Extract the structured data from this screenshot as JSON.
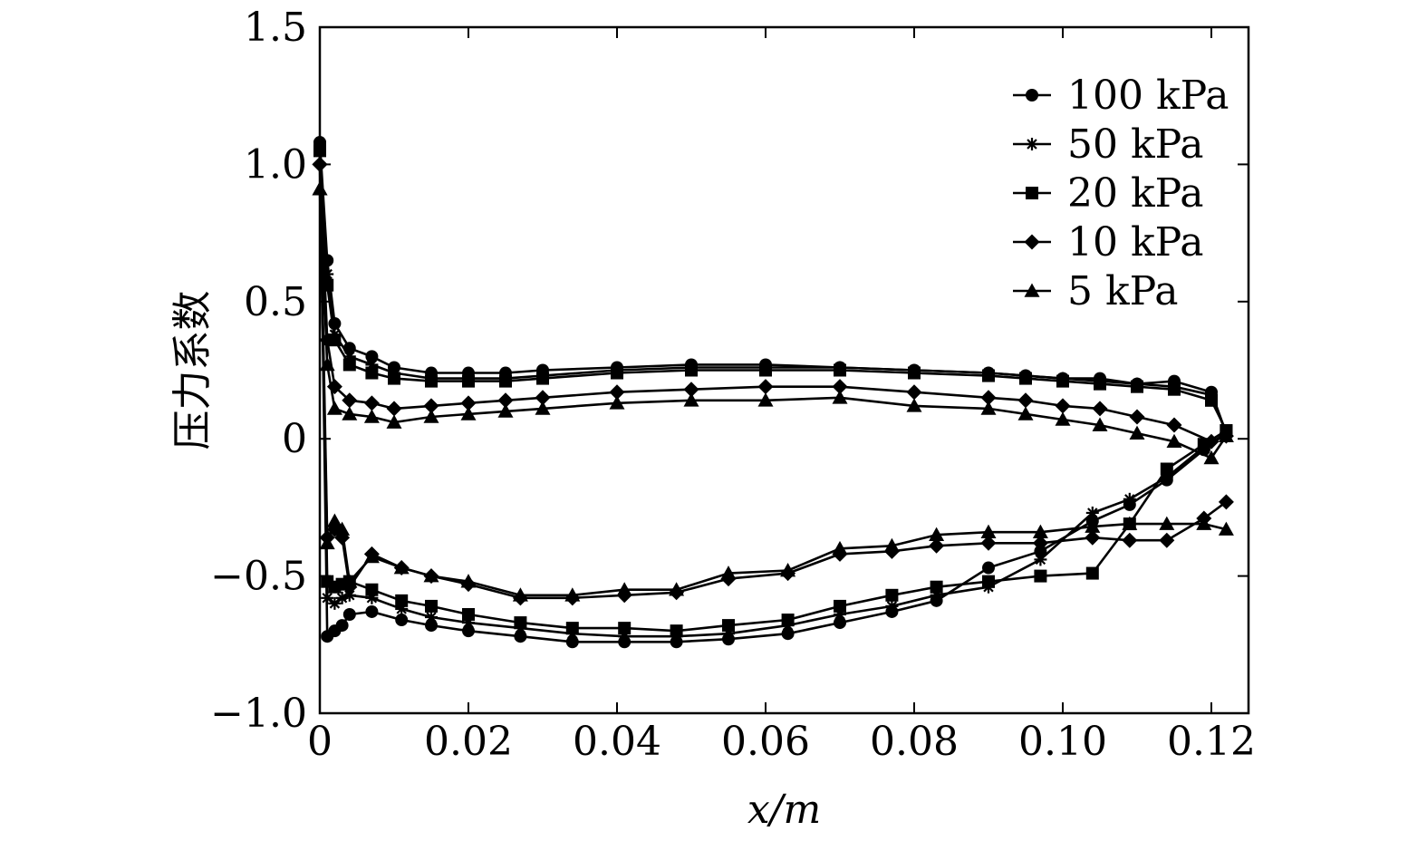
{
  "chart_data": {
    "type": "line",
    "xlabel": "x/m",
    "ylabel": "压力系数",
    "xlim": [
      0,
      0.125
    ],
    "ylim": [
      -1.0,
      1.5
    ],
    "x_ticks": [
      {
        "value": 0,
        "label": "0"
      },
      {
        "value": 0.02,
        "label": "0.02"
      },
      {
        "value": 0.04,
        "label": "0.04"
      },
      {
        "value": 0.06,
        "label": "0.06"
      },
      {
        "value": 0.08,
        "label": "0.08"
      },
      {
        "value": 0.1,
        "label": "0.10"
      },
      {
        "value": 0.12,
        "label": "0.12"
      }
    ],
    "y_ticks": [
      {
        "value": 1.5,
        "label": "1.5"
      },
      {
        "value": 1.0,
        "label": "1.0"
      },
      {
        "value": 0.5,
        "label": "0.5"
      },
      {
        "value": 0,
        "label": "0"
      },
      {
        "value": -0.5,
        "label": "−0.5"
      },
      {
        "value": -1.0,
        "label": "−1.0"
      }
    ],
    "grid": false,
    "legend_position": "top-right",
    "series": [
      {
        "name": "100 kPa",
        "marker": "circle",
        "upper": [
          [
            0,
            1.08
          ],
          [
            0.001,
            0.65
          ],
          [
            0.002,
            0.42
          ],
          [
            0.004,
            0.33
          ],
          [
            0.007,
            0.3
          ],
          [
            0.01,
            0.26
          ],
          [
            0.015,
            0.24
          ],
          [
            0.02,
            0.24
          ],
          [
            0.025,
            0.24
          ],
          [
            0.03,
            0.25
          ],
          [
            0.04,
            0.26
          ],
          [
            0.05,
            0.27
          ],
          [
            0.06,
            0.27
          ],
          [
            0.07,
            0.26
          ],
          [
            0.08,
            0.25
          ],
          [
            0.09,
            0.24
          ],
          [
            0.095,
            0.23
          ],
          [
            0.1,
            0.22
          ],
          [
            0.105,
            0.22
          ],
          [
            0.11,
            0.2
          ],
          [
            0.115,
            0.21
          ],
          [
            0.12,
            0.17
          ],
          [
            0.122,
            0.02
          ]
        ],
        "lower": [
          [
            0,
            1.08
          ],
          [
            0.001,
            -0.72
          ],
          [
            0.002,
            -0.7
          ],
          [
            0.003,
            -0.68
          ],
          [
            0.004,
            -0.64
          ],
          [
            0.007,
            -0.63
          ],
          [
            0.011,
            -0.66
          ],
          [
            0.015,
            -0.68
          ],
          [
            0.02,
            -0.7
          ],
          [
            0.027,
            -0.72
          ],
          [
            0.034,
            -0.74
          ],
          [
            0.041,
            -0.74
          ],
          [
            0.048,
            -0.74
          ],
          [
            0.055,
            -0.73
          ],
          [
            0.063,
            -0.71
          ],
          [
            0.07,
            -0.67
          ],
          [
            0.077,
            -0.63
          ],
          [
            0.083,
            -0.59
          ],
          [
            0.09,
            -0.47
          ],
          [
            0.097,
            -0.41
          ],
          [
            0.104,
            -0.3
          ],
          [
            0.109,
            -0.24
          ],
          [
            0.114,
            -0.15
          ],
          [
            0.119,
            -0.04
          ],
          [
            0.122,
            0.02
          ]
        ]
      },
      {
        "name": "50 kPa",
        "marker": "star",
        "upper": [
          [
            0,
            1.06
          ],
          [
            0.001,
            0.6
          ],
          [
            0.002,
            0.38
          ],
          [
            0.004,
            0.3
          ],
          [
            0.007,
            0.27
          ],
          [
            0.01,
            0.24
          ],
          [
            0.015,
            0.22
          ],
          [
            0.02,
            0.22
          ],
          [
            0.025,
            0.22
          ],
          [
            0.03,
            0.23
          ],
          [
            0.04,
            0.25
          ],
          [
            0.05,
            0.26
          ],
          [
            0.06,
            0.26
          ],
          [
            0.07,
            0.26
          ],
          [
            0.08,
            0.25
          ],
          [
            0.09,
            0.24
          ],
          [
            0.095,
            0.23
          ],
          [
            0.1,
            0.22
          ],
          [
            0.105,
            0.21
          ],
          [
            0.11,
            0.2
          ],
          [
            0.115,
            0.19
          ],
          [
            0.12,
            0.16
          ],
          [
            0.122,
            0.02
          ]
        ],
        "lower": [
          [
            0,
            1.06
          ],
          [
            0.001,
            -0.58
          ],
          [
            0.002,
            -0.6
          ],
          [
            0.003,
            -0.58
          ],
          [
            0.004,
            -0.57
          ],
          [
            0.007,
            -0.58
          ],
          [
            0.011,
            -0.62
          ],
          [
            0.015,
            -0.65
          ],
          [
            0.02,
            -0.67
          ],
          [
            0.027,
            -0.69
          ],
          [
            0.034,
            -0.71
          ],
          [
            0.041,
            -0.72
          ],
          [
            0.048,
            -0.72
          ],
          [
            0.055,
            -0.71
          ],
          [
            0.063,
            -0.68
          ],
          [
            0.07,
            -0.64
          ],
          [
            0.077,
            -0.61
          ],
          [
            0.083,
            -0.57
          ],
          [
            0.09,
            -0.54
          ],
          [
            0.097,
            -0.44
          ],
          [
            0.104,
            -0.27
          ],
          [
            0.109,
            -0.22
          ],
          [
            0.114,
            -0.14
          ],
          [
            0.119,
            -0.03
          ],
          [
            0.122,
            0.02
          ]
        ]
      },
      {
        "name": "20 kPa",
        "marker": "square",
        "upper": [
          [
            0,
            1.05
          ],
          [
            0.001,
            0.56
          ],
          [
            0.002,
            0.36
          ],
          [
            0.004,
            0.27
          ],
          [
            0.007,
            0.24
          ],
          [
            0.01,
            0.22
          ],
          [
            0.015,
            0.21
          ],
          [
            0.02,
            0.21
          ],
          [
            0.025,
            0.21
          ],
          [
            0.03,
            0.22
          ],
          [
            0.04,
            0.24
          ],
          [
            0.05,
            0.25
          ],
          [
            0.06,
            0.25
          ],
          [
            0.07,
            0.25
          ],
          [
            0.08,
            0.24
          ],
          [
            0.09,
            0.23
          ],
          [
            0.095,
            0.22
          ],
          [
            0.1,
            0.21
          ],
          [
            0.105,
            0.2
          ],
          [
            0.11,
            0.19
          ],
          [
            0.115,
            0.18
          ],
          [
            0.12,
            0.14
          ],
          [
            0.122,
            0.03
          ]
        ],
        "lower": [
          [
            0,
            1.05
          ],
          [
            0.001,
            -0.52
          ],
          [
            0.002,
            -0.54
          ],
          [
            0.003,
            -0.53
          ],
          [
            0.004,
            -0.52
          ],
          [
            0.007,
            -0.55
          ],
          [
            0.011,
            -0.59
          ],
          [
            0.015,
            -0.61
          ],
          [
            0.02,
            -0.64
          ],
          [
            0.027,
            -0.67
          ],
          [
            0.034,
            -0.69
          ],
          [
            0.041,
            -0.69
          ],
          [
            0.048,
            -0.7
          ],
          [
            0.055,
            -0.68
          ],
          [
            0.063,
            -0.66
          ],
          [
            0.07,
            -0.61
          ],
          [
            0.077,
            -0.57
          ],
          [
            0.083,
            -0.54
          ],
          [
            0.09,
            -0.52
          ],
          [
            0.097,
            -0.5
          ],
          [
            0.104,
            -0.49
          ],
          [
            0.109,
            -0.31
          ],
          [
            0.114,
            -0.11
          ],
          [
            0.119,
            -0.02
          ],
          [
            0.122,
            0.03
          ]
        ]
      },
      {
        "name": "10 kPa",
        "marker": "diamond",
        "upper": [
          [
            0,
            1.0
          ],
          [
            0.001,
            0.36
          ],
          [
            0.002,
            0.19
          ],
          [
            0.004,
            0.14
          ],
          [
            0.007,
            0.13
          ],
          [
            0.01,
            0.11
          ],
          [
            0.015,
            0.12
          ],
          [
            0.02,
            0.13
          ],
          [
            0.025,
            0.14
          ],
          [
            0.03,
            0.15
          ],
          [
            0.04,
            0.17
          ],
          [
            0.05,
            0.18
          ],
          [
            0.06,
            0.19
          ],
          [
            0.07,
            0.19
          ],
          [
            0.08,
            0.17
          ],
          [
            0.09,
            0.15
          ],
          [
            0.095,
            0.14
          ],
          [
            0.1,
            0.12
          ],
          [
            0.105,
            0.11
          ],
          [
            0.11,
            0.08
          ],
          [
            0.115,
            0.05
          ],
          [
            0.12,
            -0.01
          ],
          [
            0.122,
            0.01
          ]
        ],
        "lower": [
          [
            0,
            1.0
          ],
          [
            0.001,
            -0.36
          ],
          [
            0.002,
            -0.33
          ],
          [
            0.003,
            -0.36
          ],
          [
            0.004,
            -0.54
          ],
          [
            0.007,
            -0.42
          ],
          [
            0.011,
            -0.47
          ],
          [
            0.015,
            -0.5
          ],
          [
            0.02,
            -0.53
          ],
          [
            0.027,
            -0.58
          ],
          [
            0.034,
            -0.58
          ],
          [
            0.041,
            -0.57
          ],
          [
            0.048,
            -0.56
          ],
          [
            0.055,
            -0.51
          ],
          [
            0.063,
            -0.49
          ],
          [
            0.07,
            -0.42
          ],
          [
            0.077,
            -0.41
          ],
          [
            0.083,
            -0.39
          ],
          [
            0.09,
            -0.38
          ],
          [
            0.097,
            -0.38
          ],
          [
            0.104,
            -0.36
          ],
          [
            0.109,
            -0.37
          ],
          [
            0.114,
            -0.37
          ],
          [
            0.119,
            -0.29
          ],
          [
            0.122,
            -0.23
          ]
        ]
      },
      {
        "name": "5 kPa",
        "marker": "triangle",
        "upper": [
          [
            0,
            0.91
          ],
          [
            0.001,
            0.27
          ],
          [
            0.002,
            0.11
          ],
          [
            0.004,
            0.09
          ],
          [
            0.007,
            0.08
          ],
          [
            0.01,
            0.06
          ],
          [
            0.015,
            0.08
          ],
          [
            0.02,
            0.09
          ],
          [
            0.025,
            0.1
          ],
          [
            0.03,
            0.11
          ],
          [
            0.04,
            0.13
          ],
          [
            0.05,
            0.14
          ],
          [
            0.06,
            0.14
          ],
          [
            0.07,
            0.15
          ],
          [
            0.08,
            0.12
          ],
          [
            0.09,
            0.11
          ],
          [
            0.095,
            0.09
          ],
          [
            0.1,
            0.07
          ],
          [
            0.105,
            0.05
          ],
          [
            0.11,
            0.02
          ],
          [
            0.115,
            -0.01
          ],
          [
            0.12,
            -0.07
          ],
          [
            0.122,
            0.01
          ]
        ],
        "lower": [
          [
            0,
            0.91
          ],
          [
            0.001,
            -0.38
          ],
          [
            0.002,
            -0.3
          ],
          [
            0.003,
            -0.33
          ],
          [
            0.004,
            -0.52
          ],
          [
            0.007,
            -0.43
          ],
          [
            0.011,
            -0.47
          ],
          [
            0.015,
            -0.5
          ],
          [
            0.02,
            -0.52
          ],
          [
            0.027,
            -0.57
          ],
          [
            0.034,
            -0.57
          ],
          [
            0.041,
            -0.55
          ],
          [
            0.048,
            -0.55
          ],
          [
            0.055,
            -0.49
          ],
          [
            0.063,
            -0.48
          ],
          [
            0.07,
            -0.4
          ],
          [
            0.077,
            -0.39
          ],
          [
            0.083,
            -0.35
          ],
          [
            0.09,
            -0.34
          ],
          [
            0.097,
            -0.34
          ],
          [
            0.104,
            -0.32
          ],
          [
            0.109,
            -0.31
          ],
          [
            0.114,
            -0.31
          ],
          [
            0.119,
            -0.31
          ],
          [
            0.122,
            -0.33
          ]
        ]
      }
    ]
  }
}
